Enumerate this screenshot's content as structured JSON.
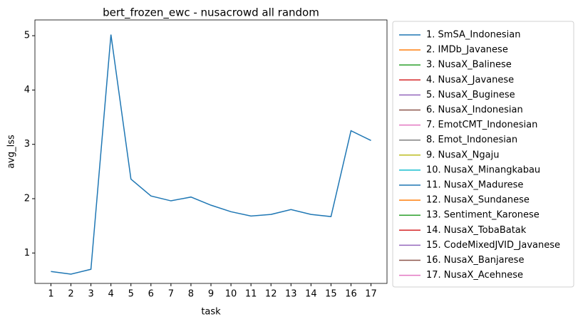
{
  "chart_data": {
    "type": "line",
    "title": "bert_frozen_ewc - nusacrowd all random",
    "x_label": "task",
    "y_label": "avg_lss",
    "x": [
      1,
      2,
      3,
      4,
      5,
      6,
      7,
      8,
      9,
      10,
      11,
      12,
      13,
      14,
      15,
      16,
      17
    ],
    "xlim": [
      0.2,
      17.8
    ],
    "xticks": [
      1,
      2,
      3,
      4,
      5,
      6,
      7,
      8,
      9,
      10,
      11,
      12,
      13,
      14,
      15,
      16,
      17
    ],
    "ylim": [
      0.44,
      5.29
    ],
    "yticks": [
      1,
      2,
      3,
      4,
      5
    ],
    "legend": "right",
    "series": [
      {
        "name": "1. SmSA_Indonesian",
        "color": "#1f77b4",
        "values": [
          0.66,
          0.61,
          0.7,
          5.02,
          2.36,
          2.05,
          1.96,
          2.03,
          1.88,
          1.76,
          1.68,
          1.71,
          1.8,
          1.71,
          1.67,
          3.25,
          3.07
        ]
      },
      {
        "name": "2. IMDb_Javanese",
        "color": "#ff7f0e",
        "values": [
          null,
          null,
          null,
          null,
          null,
          null,
          null,
          null,
          null,
          null,
          null,
          null,
          null,
          null,
          null,
          null,
          null
        ]
      },
      {
        "name": "3. NusaX_Balinese",
        "color": "#2ca02c",
        "values": [
          null,
          null,
          null,
          null,
          null,
          null,
          null,
          null,
          null,
          null,
          null,
          null,
          null,
          null,
          null,
          null,
          null
        ]
      },
      {
        "name": "4. NusaX_Javanese",
        "color": "#d62728",
        "values": [
          null,
          null,
          null,
          null,
          null,
          null,
          null,
          null,
          null,
          null,
          null,
          null,
          null,
          null,
          null,
          null,
          null
        ]
      },
      {
        "name": "5. NusaX_Buginese",
        "color": "#9467bd",
        "values": [
          null,
          null,
          null,
          null,
          null,
          null,
          null,
          null,
          null,
          null,
          null,
          null,
          null,
          null,
          null,
          null,
          null
        ]
      },
      {
        "name": "6. NusaX_Indonesian",
        "color": "#8c564b",
        "values": [
          null,
          null,
          null,
          null,
          null,
          null,
          null,
          null,
          null,
          null,
          null,
          null,
          null,
          null,
          null,
          null,
          null
        ]
      },
      {
        "name": "7. EmotCMT_Indonesian",
        "color": "#e377c2",
        "values": [
          null,
          null,
          null,
          null,
          null,
          null,
          null,
          null,
          null,
          null,
          null,
          null,
          null,
          null,
          null,
          null,
          null
        ]
      },
      {
        "name": "8. Emot_Indonesian",
        "color": "#7f7f7f",
        "values": [
          null,
          null,
          null,
          null,
          null,
          null,
          null,
          null,
          null,
          null,
          null,
          null,
          null,
          null,
          null,
          null,
          null
        ]
      },
      {
        "name": "9. NusaX_Ngaju",
        "color": "#bcbd22",
        "values": [
          null,
          null,
          null,
          null,
          null,
          null,
          null,
          null,
          null,
          null,
          null,
          null,
          null,
          null,
          null,
          null,
          null
        ]
      },
      {
        "name": "10. NusaX_Minangkabau",
        "color": "#17becf",
        "values": [
          null,
          null,
          null,
          null,
          null,
          null,
          null,
          null,
          null,
          null,
          null,
          null,
          null,
          null,
          null,
          null,
          null
        ]
      },
      {
        "name": "11. NusaX_Madurese",
        "color": "#1f77b4",
        "values": [
          null,
          null,
          null,
          null,
          null,
          null,
          null,
          null,
          null,
          null,
          null,
          null,
          null,
          null,
          null,
          null,
          null
        ]
      },
      {
        "name": "12. NusaX_Sundanese",
        "color": "#ff7f0e",
        "values": [
          null,
          null,
          null,
          null,
          null,
          null,
          null,
          null,
          null,
          null,
          null,
          null,
          null,
          null,
          null,
          null,
          null
        ]
      },
      {
        "name": "13. Sentiment_Karonese",
        "color": "#2ca02c",
        "values": [
          null,
          null,
          null,
          null,
          null,
          null,
          null,
          null,
          null,
          null,
          null,
          null,
          null,
          null,
          null,
          null,
          null
        ]
      },
      {
        "name": "14. NusaX_TobaBatak",
        "color": "#d62728",
        "values": [
          null,
          null,
          null,
          null,
          null,
          null,
          null,
          null,
          null,
          null,
          null,
          null,
          null,
          null,
          null,
          null,
          null
        ]
      },
      {
        "name": "15. CodeMixedJVID_Javanese",
        "color": "#9467bd",
        "values": [
          null,
          null,
          null,
          null,
          null,
          null,
          null,
          null,
          null,
          null,
          null,
          null,
          null,
          null,
          null,
          null,
          null
        ]
      },
      {
        "name": "16. NusaX_Banjarese",
        "color": "#8c564b",
        "values": [
          null,
          null,
          null,
          null,
          null,
          null,
          null,
          null,
          null,
          null,
          null,
          null,
          null,
          null,
          null,
          null,
          null
        ]
      },
      {
        "name": "17. NusaX_Acehnese",
        "color": "#e377c2",
        "values": [
          null,
          null,
          null,
          null,
          null,
          null,
          null,
          null,
          null,
          null,
          null,
          null,
          null,
          null,
          null,
          null,
          null
        ]
      }
    ]
  }
}
